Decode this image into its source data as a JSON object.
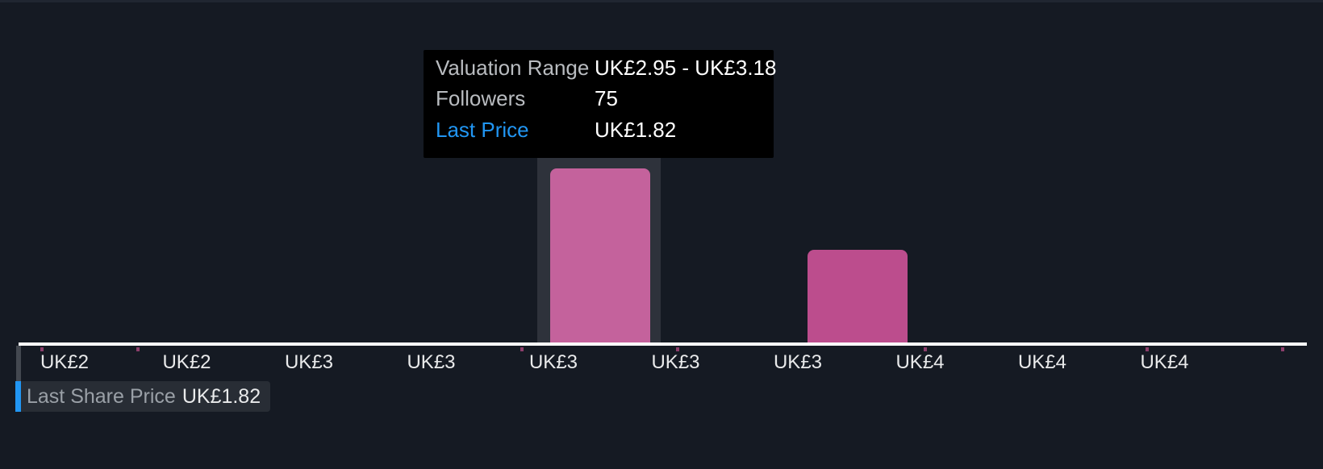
{
  "colors": {
    "background": "#151a23",
    "bar": "#bc4d8d",
    "bar_hover": "#c4629c",
    "hover_band": "#2e323b",
    "axis_line": "#ffffff",
    "axis_label": "#e9eaeb",
    "tooltip_bg": "#000000",
    "tooltip_label": "#b9bcc0",
    "tooltip_value": "#ffffff",
    "accent_blue": "#2196f3",
    "badge_bg": "#282d35",
    "badge_label": "#9aa0a7",
    "badge_value": "#e9eaeb",
    "connector_gray": "#434850",
    "tick_pink": "#a04578"
  },
  "tooltip": {
    "rows": [
      {
        "label": "Valuation Range",
        "value": "UK£2.95 - UK£3.18"
      },
      {
        "label": "Followers",
        "value": "75"
      },
      {
        "label": "Last Price",
        "value": "UK£1.82"
      }
    ]
  },
  "last_price_badge": {
    "label": "Last Share Price",
    "value": "UK£1.82"
  },
  "chart_data": {
    "type": "bar",
    "subtype": "histogram",
    "title": "",
    "xlabel": "",
    "ylabel": "",
    "grid": false,
    "legend": false,
    "categories": [
      "UK£2",
      "UK£2",
      "UK£3",
      "UK£3",
      "UK£3",
      "UK£3",
      "UK£3",
      "UK£4",
      "UK£4",
      "UK£4"
    ],
    "ylim": [
      0,
      78
    ],
    "series": [
      {
        "name": "Followers",
        "points": [
          {
            "slot": 4,
            "value": 75,
            "valuation_range": "UK£2.95 - UK£3.18",
            "state": "hovered"
          },
          {
            "slot": 6,
            "value": 40,
            "state": "normal",
            "note": "value estimated from bar height"
          }
        ]
      }
    ],
    "last_price_marker": {
      "label": "Last Share Price",
      "value": "UK£1.82",
      "position": "left edge of axis"
    }
  }
}
